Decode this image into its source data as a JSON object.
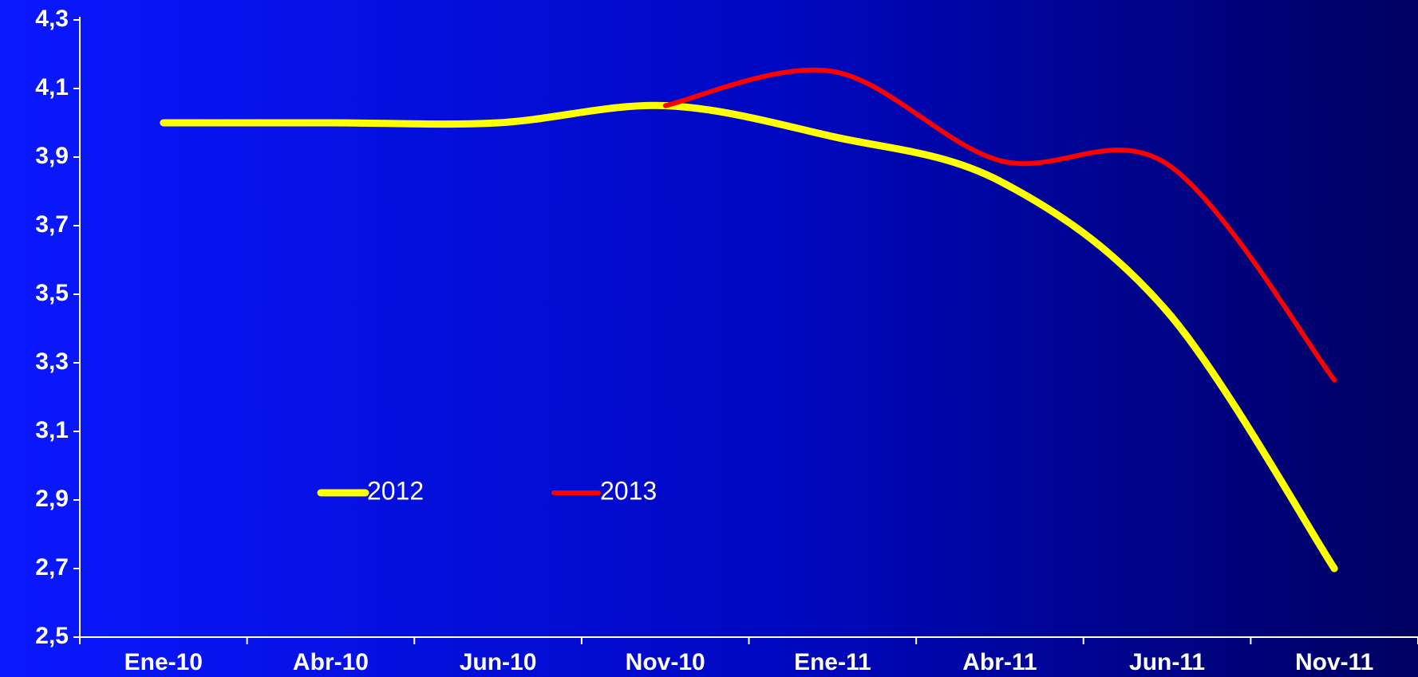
{
  "chart_data": {
    "type": "line",
    "categories": [
      "Ene-10",
      "Abr-10",
      "Jun-10",
      "Nov-10",
      "Ene-11",
      "Abr-11",
      "Jun-11",
      "Nov-11"
    ],
    "series": [
      {
        "name": "2012",
        "color": "#ffff00",
        "values": [
          4.0,
          4.0,
          4.0,
          4.05,
          3.96,
          3.83,
          3.45,
          2.7
        ]
      },
      {
        "name": "2013",
        "color": "#ff0000",
        "values": [
          null,
          null,
          null,
          4.05,
          4.15,
          3.89,
          3.88,
          3.25
        ]
      }
    ],
    "ylim": [
      2.5,
      4.3
    ],
    "yticks": [
      {
        "value": 2.5,
        "label": "2,5"
      },
      {
        "value": 2.7,
        "label": "2,7"
      },
      {
        "value": 2.9,
        "label": "2,9"
      },
      {
        "value": 3.1,
        "label": "3,1"
      },
      {
        "value": 3.3,
        "label": "3,3"
      },
      {
        "value": 3.5,
        "label": "3,5"
      },
      {
        "value": 3.7,
        "label": "3,7"
      },
      {
        "value": 3.9,
        "label": "3,9"
      },
      {
        "value": 4.1,
        "label": "4,1"
      },
      {
        "value": 4.3,
        "label": "4,3"
      }
    ],
    "grid": false
  }
}
